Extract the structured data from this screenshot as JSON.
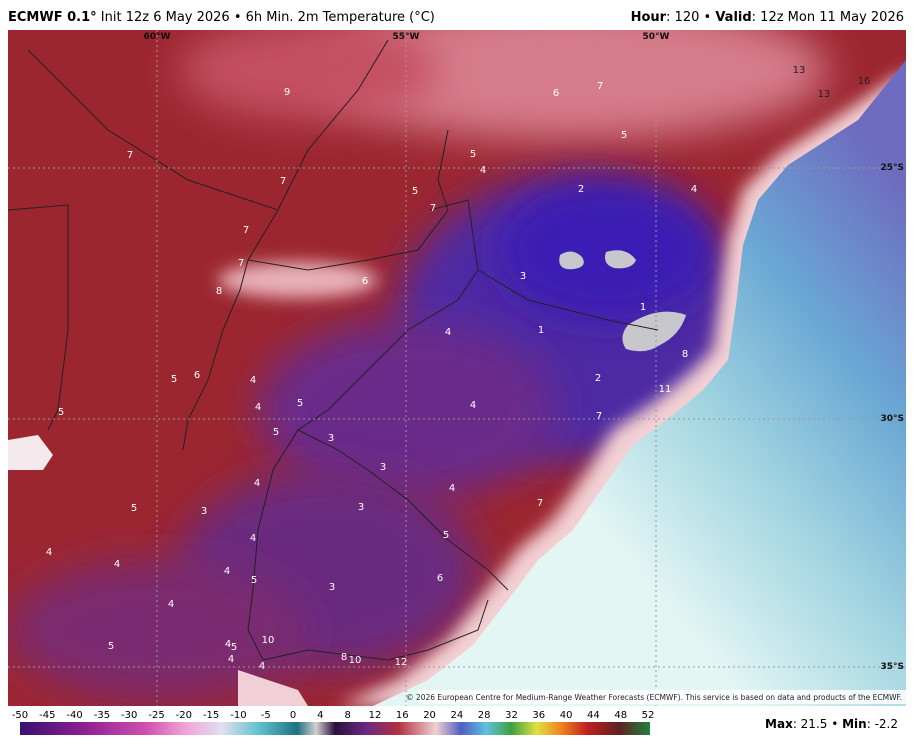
{
  "header": {
    "model": "ECMWF 0.1°",
    "title": "Init 12z 6 May 2026 • 6h Min. 2m Temperature (°C)",
    "hour_label": "Hour",
    "hour": ": 120 •",
    "valid_label": "Valid",
    "valid": ": 12z Mon 11 May 2026"
  },
  "map": {
    "grid_labels": [
      "60°W",
      "55°W",
      "50°W",
      "25°S",
      "30°S",
      "35°S"
    ],
    "values": [
      9,
      7,
      7,
      7,
      7,
      8,
      6,
      5,
      7,
      5,
      4,
      6,
      7,
      5,
      2,
      4,
      13,
      13,
      16,
      3,
      1,
      1,
      4,
      8,
      2,
      11,
      7,
      4,
      5,
      6,
      4,
      4,
      5,
      5,
      5,
      3,
      3,
      4,
      4,
      5,
      3,
      3,
      7,
      4,
      5,
      4,
      4,
      4,
      5,
      3,
      6,
      4,
      5,
      4,
      5,
      10,
      4,
      4,
      8,
      10,
      12
    ],
    "copyright": "© 2026 European Centre for Medium-Range Weather Forecasts (ECMWF). This service is based on data and products of the ECMWF."
  },
  "colorbar": {
    "ticks": [
      -50,
      -45,
      -40,
      -35,
      -30,
      -25,
      -20,
      -15,
      -10,
      -5,
      0,
      4,
      8,
      12,
      16,
      20,
      24,
      28,
      32,
      36,
      40,
      44,
      48,
      52
    ]
  },
  "stats": {
    "max_label": "Max",
    "max": ": 21.5 •",
    "min_label": "Min",
    "min": ": -2.2"
  }
}
